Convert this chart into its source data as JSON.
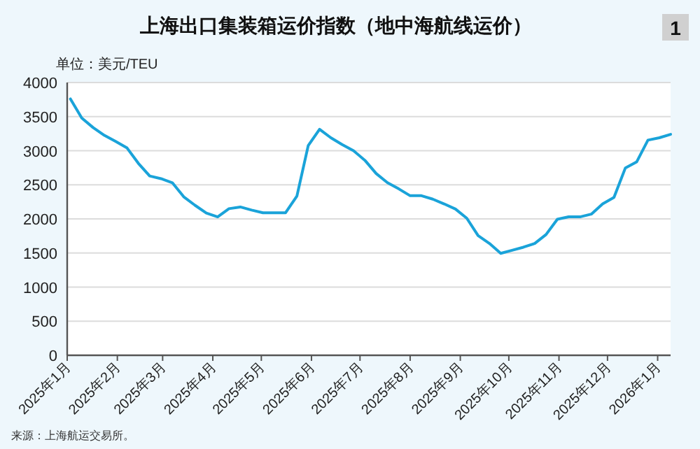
{
  "chart_data": {
    "type": "line",
    "title": "上海出口集装箱运价指数（地中海航线运价）",
    "ylabel": "单位：美元/TEU",
    "annotations": [
      "1",
      "来源：上海航运交易所。"
    ],
    "x": [
      "2025-01-03",
      "2025-01-10",
      "2025-01-17",
      "2025-01-24",
      "2025-01-31",
      "2025-02-07",
      "2025-02-14",
      "2025-02-21",
      "2025-02-28",
      "2025-03-07",
      "2025-03-14",
      "2025-03-21",
      "2025-03-28",
      "2025-04-04",
      "2025-04-11",
      "2025-04-18",
      "2025-04-25",
      "2025-05-02",
      "2025-05-09",
      "2025-05-16",
      "2025-05-23",
      "2025-05-30",
      "2025-06-06",
      "2025-06-13",
      "2025-06-20",
      "2025-06-27",
      "2025-07-04",
      "2025-07-11",
      "2025-07-18",
      "2025-07-25",
      "2025-08-01",
      "2025-08-08",
      "2025-08-15",
      "2025-08-22",
      "2025-08-29",
      "2025-09-05",
      "2025-09-12",
      "2025-09-19",
      "2025-09-26",
      "2025-10-03",
      "2025-10-10",
      "2025-10-17",
      "2025-10-24",
      "2025-10-31",
      "2025-11-07",
      "2025-11-14",
      "2025-11-21",
      "2025-11-28",
      "2025-12-05",
      "2025-12-12",
      "2025-12-19",
      "2025-12-26",
      "2026-01-02",
      "2026-01-09"
    ],
    "series": [
      {
        "color": "#1aa3d9",
        "values": [
          3760,
          3480,
          3340,
          3225,
          3135,
          3040,
          2815,
          2630,
          2590,
          2530,
          2325,
          2200,
          2085,
          2030,
          2150,
          2175,
          2130,
          2090,
          2090,
          2090,
          2335,
          3075,
          3315,
          3190,
          3090,
          3000,
          2860,
          2665,
          2530,
          2440,
          2340,
          2340,
          2290,
          2220,
          2145,
          2010,
          1755,
          1640,
          1495,
          1540,
          1585,
          1640,
          1770,
          1995,
          2030,
          2030,
          2070,
          2220,
          2315,
          2745,
          2835,
          3155,
          3190,
          3240
        ]
      }
    ],
    "xlim": [
      "2025-01-01",
      "2026-01-09"
    ],
    "xticks": [
      {
        "value": "2025-01-01",
        "label": "2025年1月"
      },
      {
        "value": "2025-02-01",
        "label": "2025年2月"
      },
      {
        "value": "2025-03-01",
        "label": "2025年3月"
      },
      {
        "value": "2025-04-01",
        "label": "2025年4月"
      },
      {
        "value": "2025-05-01",
        "label": "2025年5月"
      },
      {
        "value": "2025-06-01",
        "label": "2025年6月"
      },
      {
        "value": "2025-07-01",
        "label": "2025年7月"
      },
      {
        "value": "2025-08-01",
        "label": "2025年8月"
      },
      {
        "value": "2025-09-01",
        "label": "2025年9月"
      },
      {
        "value": "2025-10-01",
        "label": "2025年10月"
      },
      {
        "value": "2025-11-01",
        "label": "2025年11月"
      },
      {
        "value": "2025-12-01",
        "label": "2025年12月"
      },
      {
        "value": "2026-01-01",
        "label": "2026年1月"
      }
    ],
    "ylim": [
      0,
      4000
    ],
    "yticks": [
      0,
      500,
      1000,
      1500,
      2000,
      2500,
      3000,
      3500,
      4000
    ],
    "grid": "y"
  }
}
